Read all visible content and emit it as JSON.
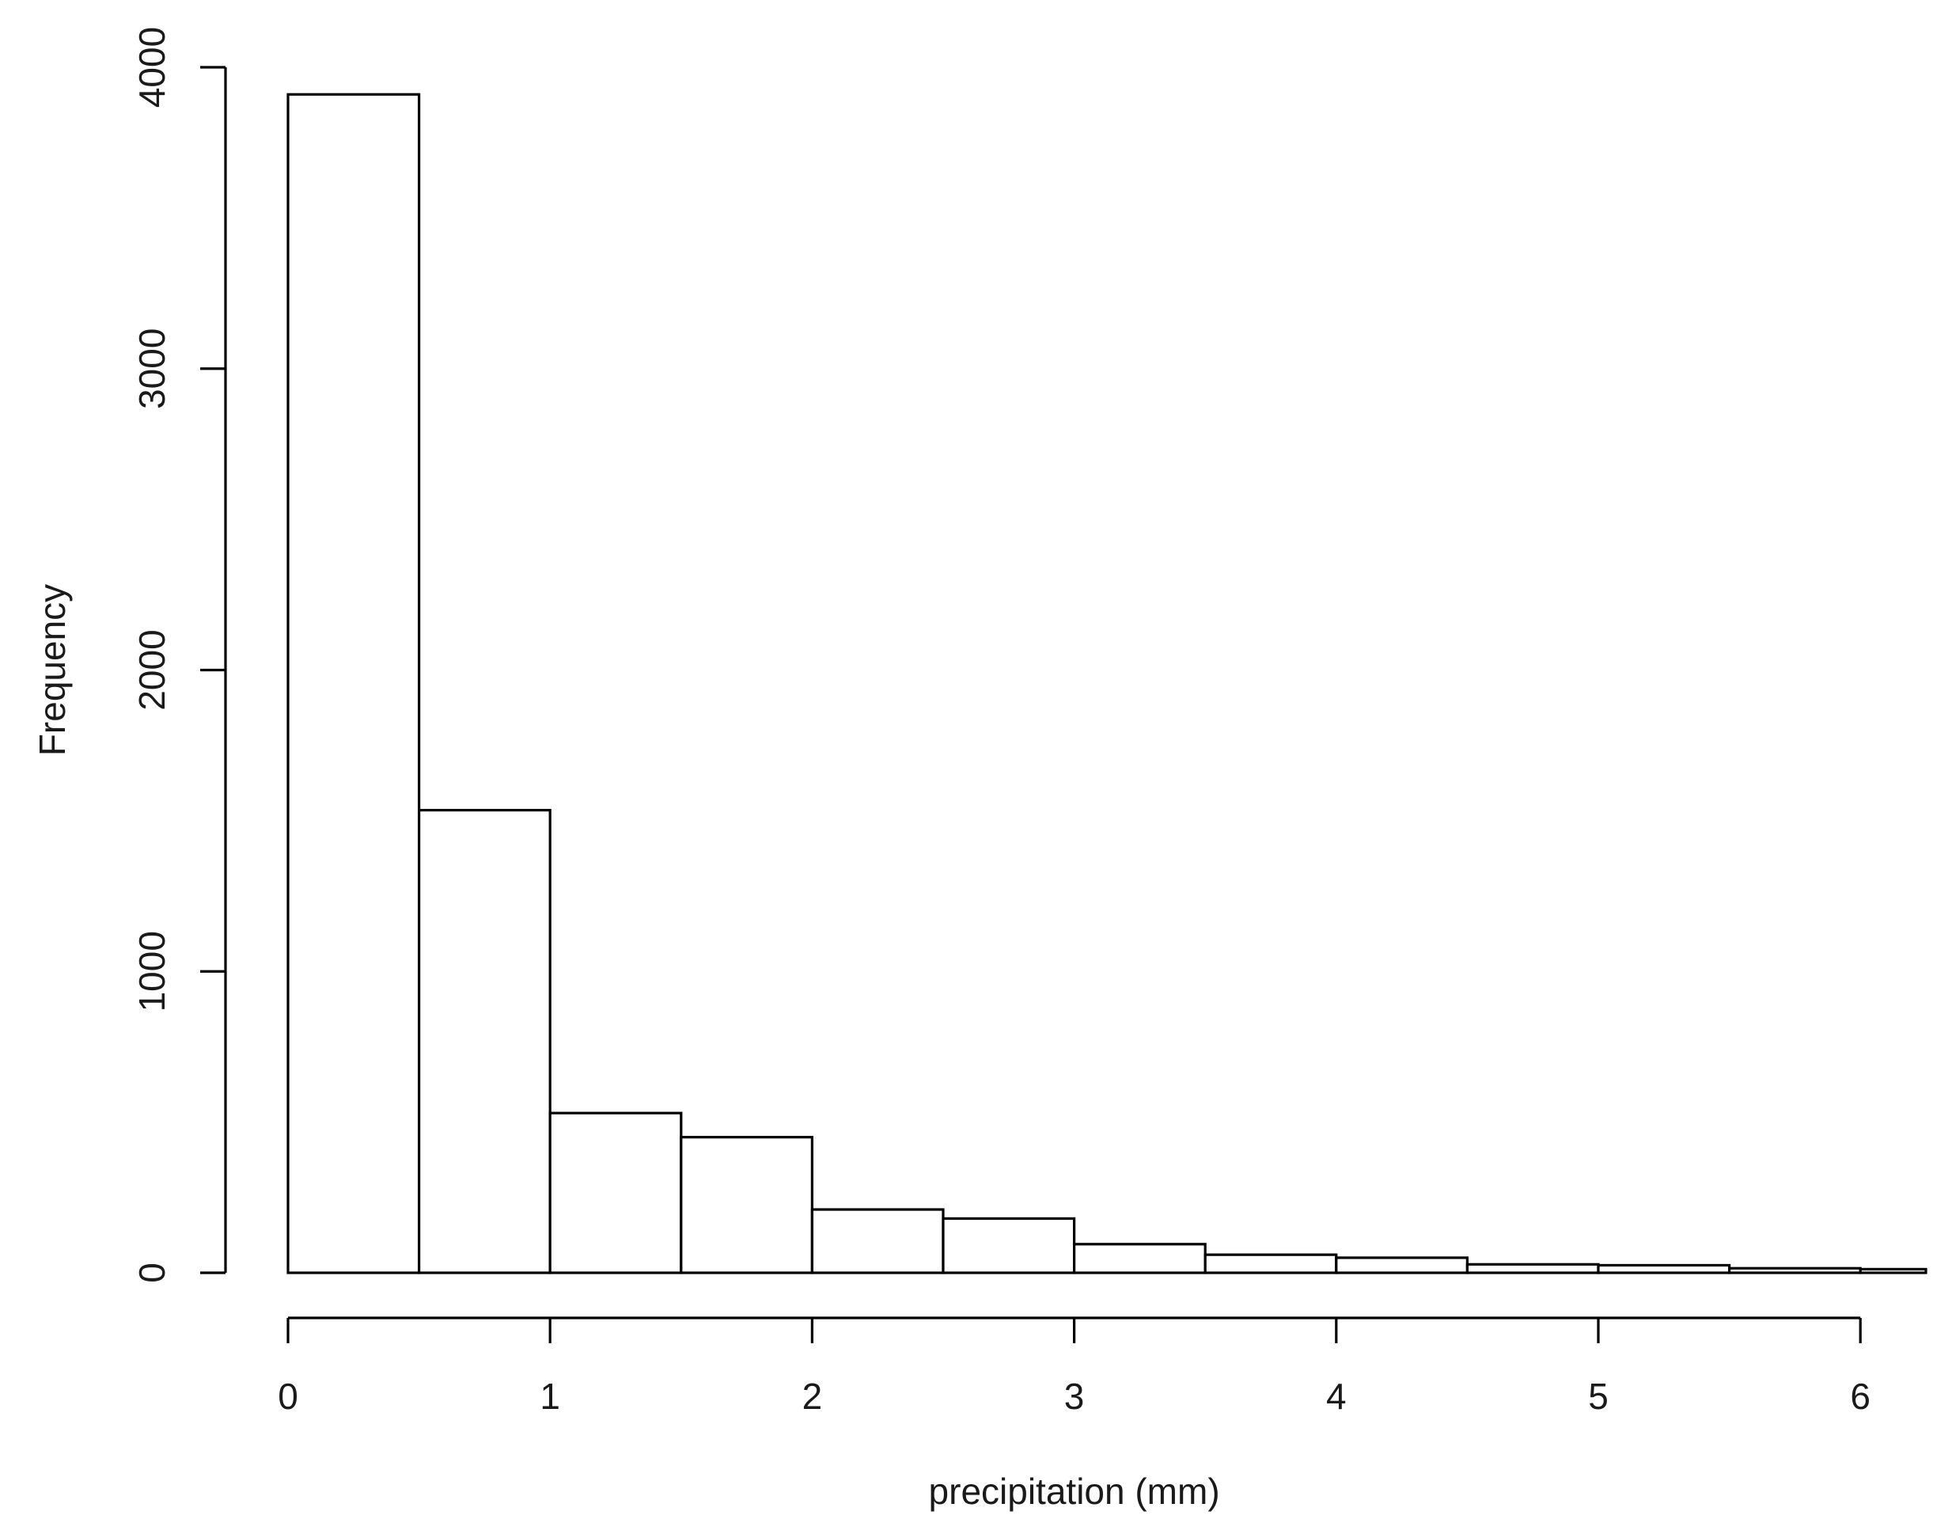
{
  "chart_data": {
    "type": "bar",
    "title": "",
    "xlabel": "precipitation (mm)",
    "ylabel": "Frequency",
    "bin_edges": [
      0,
      0.5,
      1,
      1.5,
      2,
      2.5,
      3,
      3.5,
      4,
      4.5,
      5,
      5.5,
      6,
      6.5
    ],
    "values": [
      3910,
      1535,
      530,
      450,
      210,
      180,
      95,
      60,
      50,
      28,
      25,
      15,
      12
    ],
    "xlim": [
      0,
      6.25
    ],
    "ylim": [
      0,
      4000
    ],
    "x_ticks": [
      0,
      1,
      2,
      3,
      4,
      5,
      6
    ],
    "x_tick_labels": [
      "0",
      "1",
      "2",
      "3",
      "4",
      "5",
      "6"
    ],
    "y_ticks": [
      0,
      1000,
      2000,
      3000,
      4000
    ],
    "y_tick_labels": [
      "0",
      "1000",
      "2000",
      "3000",
      "4000"
    ],
    "grid": false,
    "legend": "none",
    "bar_fill": "#ffffff",
    "bar_stroke": "#000000"
  }
}
